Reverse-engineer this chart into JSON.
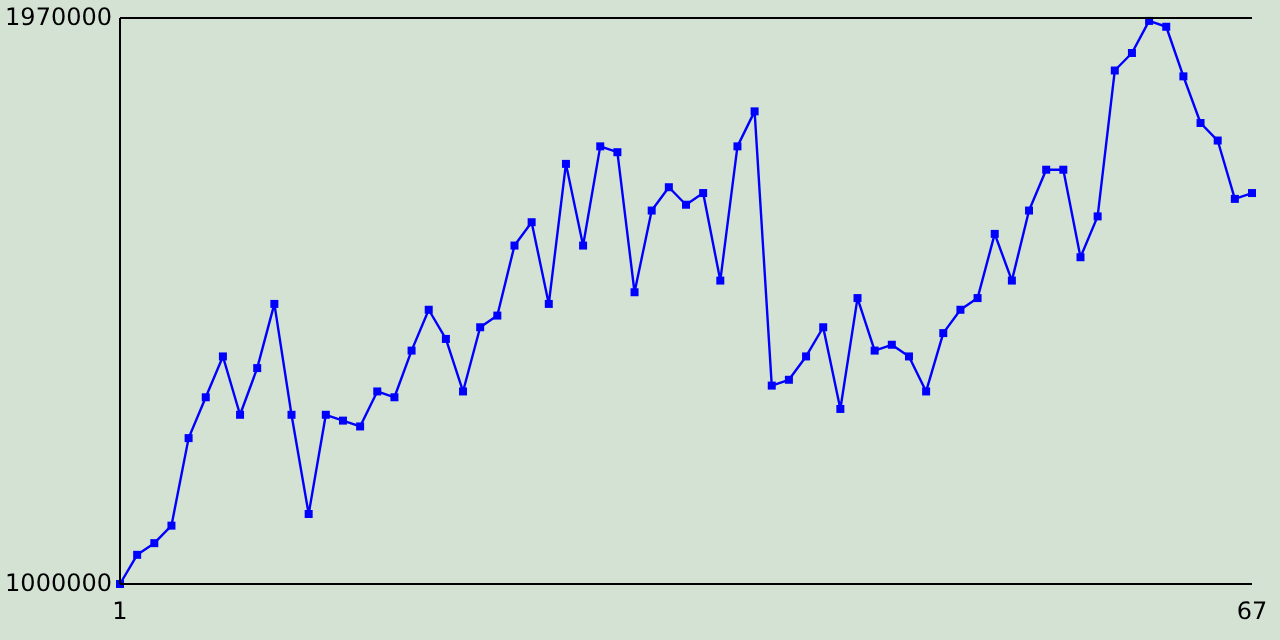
{
  "chart_data": {
    "type": "line",
    "x": [
      1,
      2,
      3,
      4,
      5,
      6,
      7,
      8,
      9,
      10,
      11,
      12,
      13,
      14,
      15,
      16,
      17,
      18,
      19,
      20,
      21,
      22,
      23,
      24,
      25,
      26,
      27,
      28,
      29,
      30,
      31,
      32,
      33,
      34,
      35,
      36,
      37,
      38,
      39,
      40,
      41,
      42,
      43,
      44,
      45,
      46,
      47,
      48,
      49,
      50,
      51,
      52,
      53,
      54,
      55,
      56,
      57,
      58,
      59,
      60,
      61,
      62,
      63,
      64,
      65,
      66,
      67
    ],
    "series": [
      {
        "color": "#0000ff",
        "values": [
          1000000,
          1050000,
          1070000,
          1100000,
          1250000,
          1320000,
          1390000,
          1290000,
          1370000,
          1480000,
          1290000,
          1120000,
          1290000,
          1280000,
          1270000,
          1330000,
          1320000,
          1400000,
          1470000,
          1420000,
          1330000,
          1440000,
          1460000,
          1580000,
          1620000,
          1480000,
          1720000,
          1580000,
          1750000,
          1740000,
          1500000,
          1640000,
          1680000,
          1650000,
          1670000,
          1520000,
          1750000,
          1810000,
          1340000,
          1350000,
          1390000,
          1440000,
          1300000,
          1490000,
          1400000,
          1410000,
          1390000,
          1330000,
          1430000,
          1470000,
          1490000,
          1600000,
          1520000,
          1640000,
          1710000,
          1710000,
          1560000,
          1630000,
          1880000,
          1910000,
          1965000,
          1955000,
          1870000,
          1790000,
          1760000,
          1660000,
          1670000
        ]
      }
    ],
    "xlim": [
      1,
      67
    ],
    "xticks": [
      1,
      67
    ],
    "ylim": [
      1000000,
      1970000
    ],
    "yticks": [
      1000000,
      1970000
    ],
    "grid": false,
    "marker": "square",
    "line_style": "solid"
  }
}
